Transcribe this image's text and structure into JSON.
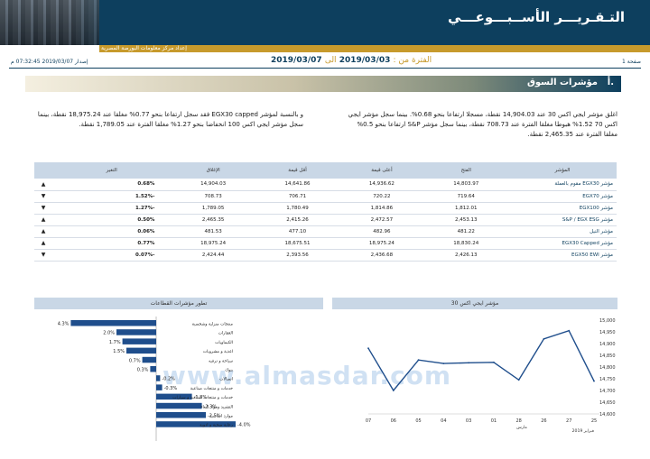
{
  "header": {
    "title": "التـقـريـــر الأســبـــوعـــي",
    "subtitle": "إعداد مركز معلومات البورصة المصرية"
  },
  "info": {
    "page": "صفحة 1",
    "release": "إصدار 2019/03/07 07:32:45 م",
    "period_label": "الفترة من :",
    "period_from": "2019/03/03",
    "period_to_word": "الى",
    "period_to": "2019/03/07"
  },
  "section": {
    "number": "أ.",
    "title": "مؤشرات السوق"
  },
  "paragraphs": {
    "right": "اغلق مؤشر ايجي اكس 30 عند 14,904.03 نقطة، مسجلا ارتفاعا بنحو 0.68%. بينما سجل مؤشر ايجي اكس 70 1.52% هبوطا مغلقا الفترة عند 708.73 نقطة، بينما سجل مؤشر S&P ارتفاعا بنحو 0.5% مغلقا الفترة عند 2,465.35 نقطة.",
    "left": "و بالنسبة لمؤشر EGX30 capped فقد سجل ارتفاعا بنحو 0.77% مغلقا عند 18,975.24 نقطة، بينما سجل مؤشر ايجي اكس 100 انخفاضا بنحو 1.27% مغلقا الفترة عند 1,789.05 نقطة."
  },
  "table": {
    "headers": [
      "المؤشر",
      "الفتح",
      "أعلى قيمة",
      "أقل قيمة",
      "الإغلاق",
      "التغير"
    ],
    "rows": [
      {
        "name": "مؤشر EGX30 مقوم بالعملة",
        "open": "14,803.97",
        "high": "14,936.62",
        "low": "14,641.86",
        "close": "14,904.03",
        "change": "0.68%",
        "dir": "up"
      },
      {
        "name": "مؤشر EGX70",
        "open": "719.64",
        "high": "720.22",
        "low": "706.71",
        "close": "708.73",
        "change": "-1.52%",
        "dir": "down"
      },
      {
        "name": "مؤشر EGX100",
        "open": "1,812.01",
        "high": "1,814.86",
        "low": "1,780.49",
        "close": "1,789.05",
        "change": "-1.27%",
        "dir": "down"
      },
      {
        "name": "مؤشر S&P / EGX ESG",
        "open": "2,453.13",
        "high": "2,472.57",
        "low": "2,415.26",
        "close": "2,465.35",
        "change": "0.50%",
        "dir": "up"
      },
      {
        "name": "مؤشر النيل",
        "open": "481.22",
        "high": "482.96",
        "low": "477.10",
        "close": "481.53",
        "change": "0.06%",
        "dir": "up"
      },
      {
        "name": "مؤشر EGX30 Capped",
        "open": "18,830.24",
        "high": "18,975.24",
        "low": "18,675.51",
        "close": "18,975.24",
        "change": "0.77%",
        "dir": "up"
      },
      {
        "name": "مؤشر EGX50 EWI",
        "open": "2,426.13",
        "high": "2,436.68",
        "low": "2,393.56",
        "close": "2,424.44",
        "change": "-0.07%",
        "dir": "down"
      }
    ],
    "arrows": {
      "up": "▲",
      "down": "▼"
    }
  },
  "charts_titles": {
    "sectors": "تطور مؤشرات القطاعات",
    "egx30": "مؤشر ايجي اكس 30"
  },
  "colors": {
    "navy": "#0d3f5e",
    "gold": "#c79a2c",
    "bar": "#1f4e8c",
    "header_fill": "#c9d7e6"
  },
  "watermark": "www.almasdar.com",
  "chart_data": [
    {
      "type": "bar",
      "orientation": "horizontal",
      "title": "تطور مؤشرات القطاعات",
      "categories": [
        "منتجات منزلية وشخصية",
        "العقارات",
        "الكيماويات",
        "اغذية و مشروبات",
        "سياحة و ترفيه",
        "بنوك",
        "اتصالات",
        "خدمات و منتجات صناعية",
        "خدمات و منتجات صناعية و سيارات",
        "التشييد ومواد البناء",
        "موارد اساسية",
        "رعاية صحية و ادوية"
      ],
      "values": [
        4.3,
        2.0,
        1.7,
        1.5,
        0.7,
        0.3,
        -0.2,
        -0.3,
        -1.8,
        -2.3,
        -2.5,
        -4.0
      ],
      "labels": [
        "4.3%",
        "2.0%",
        "1.7%",
        "1.5%",
        "0.7%",
        "0.3%",
        "-0.2%",
        "-0.3%",
        "-1.8%",
        "-2.3%",
        "-2.5%",
        "-4.0%"
      ]
    },
    {
      "type": "line",
      "title": "مؤشر ايجي اكس 30",
      "x": [
        "25",
        "27",
        "26",
        "28",
        "01",
        "03",
        "04",
        "05",
        "06",
        "07"
      ],
      "values": [
        14740,
        14955,
        14920,
        14745,
        14820,
        14818,
        14815,
        14830,
        14700,
        14880
      ],
      "ylim": [
        14600,
        15000
      ],
      "yticks": [
        "15,000",
        "14,950",
        "14,900",
        "14,850",
        "14,800",
        "14,750",
        "14,700",
        "14,650",
        "14,600"
      ],
      "x_group_labels": [
        "فبراير 2019",
        "مارس"
      ]
    }
  ]
}
